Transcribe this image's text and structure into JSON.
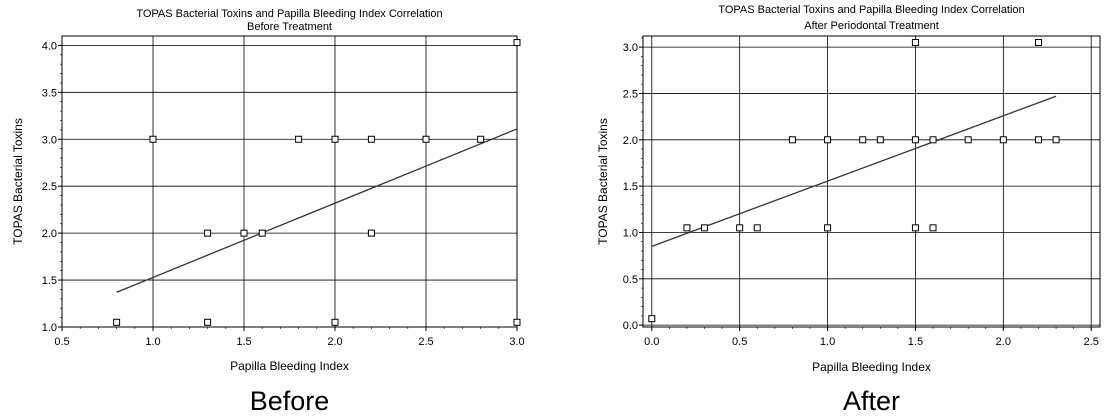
{
  "chart_data": [
    {
      "type": "scatter",
      "title": "TOPAS Bacterial Toxins and Papilla Bleeding Index Correlation",
      "subtitle": "Before Treatment",
      "xlabel": "Papilla Bleeding Index",
      "ylabel": "TOPAS Bacterial Toxins",
      "caption": "Before",
      "xlim": [
        0.5,
        3.0
      ],
      "ylim": [
        1.0,
        4.1
      ],
      "xticks": [
        "0.5",
        "1.0",
        "1.5",
        "2.0",
        "2.5",
        "3.0"
      ],
      "yticks": [
        "1.0",
        "1.5",
        "2.0",
        "2.5",
        "3.0",
        "3.5",
        "4.0"
      ],
      "grid": true,
      "points": [
        {
          "x": 0.8,
          "y": 1.05
        },
        {
          "x": 1.3,
          "y": 1.05
        },
        {
          "x": 2.0,
          "y": 1.05
        },
        {
          "x": 3.0,
          "y": 1.05
        },
        {
          "x": 1.3,
          "y": 2.0
        },
        {
          "x": 1.5,
          "y": 2.0
        },
        {
          "x": 1.6,
          "y": 2.0
        },
        {
          "x": 2.2,
          "y": 2.0
        },
        {
          "x": 1.0,
          "y": 3.0
        },
        {
          "x": 1.8,
          "y": 3.0
        },
        {
          "x": 2.0,
          "y": 3.0
        },
        {
          "x": 2.2,
          "y": 3.0
        },
        {
          "x": 2.5,
          "y": 3.0
        },
        {
          "x": 2.8,
          "y": 3.0
        },
        {
          "x": 3.0,
          "y": 4.03
        }
      ],
      "trendline": {
        "x": [
          0.8,
          3.0
        ],
        "y": [
          1.37,
          3.11
        ]
      }
    },
    {
      "type": "scatter",
      "title": "TOPAS Bacterial Toxins and Papilla Bleeding Index Correlation",
      "subtitle": "After Periodontal Treatment",
      "xlabel": "Papilla Bleeding Index",
      "ylabel": "TOPAS Bacterial Toxins",
      "caption": "After",
      "xlim": [
        -0.05,
        2.55
      ],
      "ylim": [
        -0.02,
        3.12
      ],
      "xticks": [
        "0.0",
        "0.5",
        "1.0",
        "1.5",
        "2.0",
        "2.5"
      ],
      "yticks": [
        "0.0",
        "0.5",
        "1.0",
        "1.5",
        "2.0",
        "2.5",
        "3.0"
      ],
      "grid": true,
      "points": [
        {
          "x": 0.0,
          "y": 0.07
        },
        {
          "x": 0.2,
          "y": 1.05
        },
        {
          "x": 0.3,
          "y": 1.05
        },
        {
          "x": 0.5,
          "y": 1.05
        },
        {
          "x": 0.6,
          "y": 1.05
        },
        {
          "x": 1.0,
          "y": 1.05
        },
        {
          "x": 1.5,
          "y": 1.05
        },
        {
          "x": 1.6,
          "y": 1.05
        },
        {
          "x": 0.8,
          "y": 2.0
        },
        {
          "x": 1.0,
          "y": 2.0
        },
        {
          "x": 1.2,
          "y": 2.0
        },
        {
          "x": 1.3,
          "y": 2.0
        },
        {
          "x": 1.5,
          "y": 2.0
        },
        {
          "x": 1.6,
          "y": 2.0
        },
        {
          "x": 1.8,
          "y": 2.0
        },
        {
          "x": 2.0,
          "y": 2.0
        },
        {
          "x": 2.2,
          "y": 2.0
        },
        {
          "x": 2.3,
          "y": 2.0
        },
        {
          "x": 1.5,
          "y": 3.05
        },
        {
          "x": 2.2,
          "y": 3.05
        }
      ],
      "trendline": {
        "x": [
          0.0,
          2.3
        ],
        "y": [
          0.85,
          2.47
        ]
      }
    }
  ]
}
